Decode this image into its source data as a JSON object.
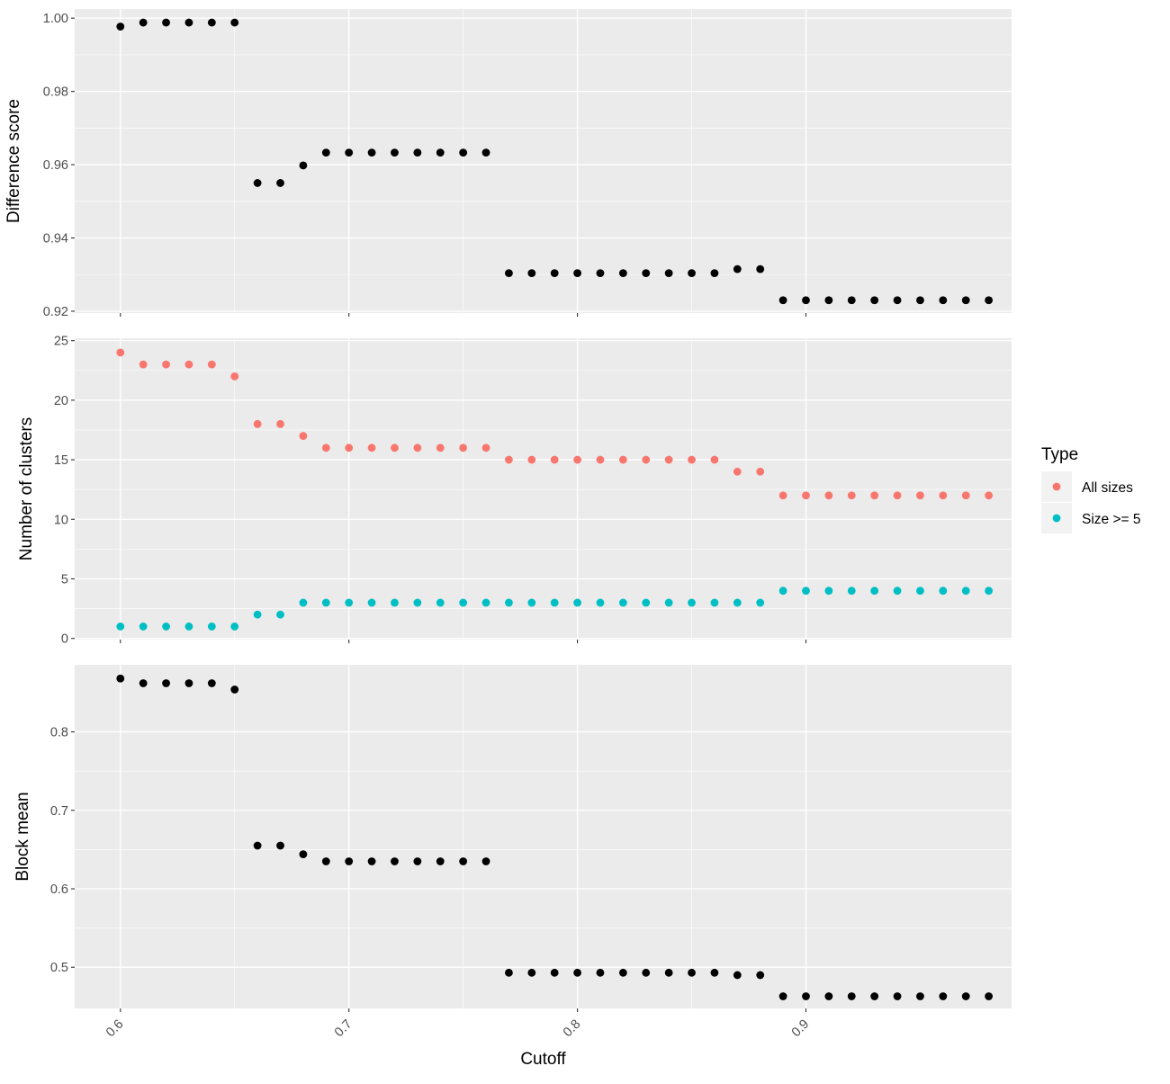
{
  "chart_data": [
    {
      "type": "scatter",
      "panel": "top",
      "xlabel": "",
      "ylabel": "Difference score",
      "xlim": [
        0.58,
        0.99
      ],
      "ylim": [
        0.9195,
        1.0025
      ],
      "yticks": [
        0.92,
        0.94,
        0.96,
        0.98,
        1.0
      ],
      "ytick_labels": [
        "0.92",
        "0.94",
        "0.96",
        "0.98",
        "1.00"
      ],
      "xticks": [
        0.6,
        0.7,
        0.8,
        0.9
      ],
      "grid": true,
      "series": [
        {
          "color": "#000000",
          "points": [
            [
              0.6,
              0.9977
            ],
            [
              0.61,
              0.9988
            ],
            [
              0.62,
              0.9988
            ],
            [
              0.63,
              0.9988
            ],
            [
              0.64,
              0.9988
            ],
            [
              0.65,
              0.9988
            ],
            [
              0.66,
              0.955
            ],
            [
              0.67,
              0.955
            ],
            [
              0.68,
              0.9598
            ],
            [
              0.69,
              0.9633
            ],
            [
              0.7,
              0.9633
            ],
            [
              0.71,
              0.9633
            ],
            [
              0.72,
              0.9633
            ],
            [
              0.73,
              0.9633
            ],
            [
              0.74,
              0.9633
            ],
            [
              0.75,
              0.9633
            ],
            [
              0.76,
              0.9633
            ],
            [
              0.77,
              0.9304
            ],
            [
              0.78,
              0.9304
            ],
            [
              0.79,
              0.9304
            ],
            [
              0.8,
              0.9304
            ],
            [
              0.81,
              0.9304
            ],
            [
              0.82,
              0.9304
            ],
            [
              0.83,
              0.9304
            ],
            [
              0.84,
              0.9304
            ],
            [
              0.85,
              0.9304
            ],
            [
              0.86,
              0.9304
            ],
            [
              0.87,
              0.9315
            ],
            [
              0.88,
              0.9315
            ],
            [
              0.89,
              0.923
            ],
            [
              0.9,
              0.923
            ],
            [
              0.91,
              0.923
            ],
            [
              0.92,
              0.923
            ],
            [
              0.93,
              0.923
            ],
            [
              0.94,
              0.923
            ],
            [
              0.95,
              0.923
            ],
            [
              0.96,
              0.923
            ],
            [
              0.97,
              0.923
            ],
            [
              0.98,
              0.923
            ]
          ]
        }
      ]
    },
    {
      "type": "scatter",
      "panel": "middle",
      "xlabel": "",
      "ylabel": "Number of clusters",
      "xlim": [
        0.58,
        0.99
      ],
      "ylim": [
        -0.1,
        25.2
      ],
      "yticks": [
        0,
        5,
        10,
        15,
        20,
        25
      ],
      "ytick_labels": [
        "0",
        "5",
        "10",
        "15",
        "20",
        "25"
      ],
      "xticks": [
        0.6,
        0.7,
        0.8,
        0.9
      ],
      "grid": true,
      "legend": {
        "title": "Type",
        "placement": "right",
        "entries": [
          {
            "label": "All sizes",
            "color": "#F8766D"
          },
          {
            "label": "Size >= 5",
            "color": "#00BFC4"
          }
        ]
      },
      "series": [
        {
          "name": "All sizes",
          "color": "#F8766D",
          "points": [
            [
              0.6,
              24
            ],
            [
              0.61,
              23
            ],
            [
              0.62,
              23
            ],
            [
              0.63,
              23
            ],
            [
              0.64,
              23
            ],
            [
              0.65,
              22
            ],
            [
              0.66,
              18
            ],
            [
              0.67,
              18
            ],
            [
              0.68,
              17
            ],
            [
              0.69,
              16
            ],
            [
              0.7,
              16
            ],
            [
              0.71,
              16
            ],
            [
              0.72,
              16
            ],
            [
              0.73,
              16
            ],
            [
              0.74,
              16
            ],
            [
              0.75,
              16
            ],
            [
              0.76,
              16
            ],
            [
              0.77,
              15
            ],
            [
              0.78,
              15
            ],
            [
              0.79,
              15
            ],
            [
              0.8,
              15
            ],
            [
              0.81,
              15
            ],
            [
              0.82,
              15
            ],
            [
              0.83,
              15
            ],
            [
              0.84,
              15
            ],
            [
              0.85,
              15
            ],
            [
              0.86,
              15
            ],
            [
              0.87,
              14
            ],
            [
              0.88,
              14
            ],
            [
              0.89,
              12
            ],
            [
              0.9,
              12
            ],
            [
              0.91,
              12
            ],
            [
              0.92,
              12
            ],
            [
              0.93,
              12
            ],
            [
              0.94,
              12
            ],
            [
              0.95,
              12
            ],
            [
              0.96,
              12
            ],
            [
              0.97,
              12
            ],
            [
              0.98,
              12
            ]
          ]
        },
        {
          "name": "Size >= 5",
          "color": "#00BFC4",
          "points": [
            [
              0.6,
              1
            ],
            [
              0.61,
              1
            ],
            [
              0.62,
              1
            ],
            [
              0.63,
              1
            ],
            [
              0.64,
              1
            ],
            [
              0.65,
              1
            ],
            [
              0.66,
              2
            ],
            [
              0.67,
              2
            ],
            [
              0.68,
              3
            ],
            [
              0.69,
              3
            ],
            [
              0.7,
              3
            ],
            [
              0.71,
              3
            ],
            [
              0.72,
              3
            ],
            [
              0.73,
              3
            ],
            [
              0.74,
              3
            ],
            [
              0.75,
              3
            ],
            [
              0.76,
              3
            ],
            [
              0.77,
              3
            ],
            [
              0.78,
              3
            ],
            [
              0.79,
              3
            ],
            [
              0.8,
              3
            ],
            [
              0.81,
              3
            ],
            [
              0.82,
              3
            ],
            [
              0.83,
              3
            ],
            [
              0.84,
              3
            ],
            [
              0.85,
              3
            ],
            [
              0.86,
              3
            ],
            [
              0.87,
              3
            ],
            [
              0.88,
              3
            ],
            [
              0.89,
              4
            ],
            [
              0.9,
              4
            ],
            [
              0.91,
              4
            ],
            [
              0.92,
              4
            ],
            [
              0.93,
              4
            ],
            [
              0.94,
              4
            ],
            [
              0.95,
              4
            ],
            [
              0.96,
              4
            ],
            [
              0.97,
              4
            ],
            [
              0.98,
              4
            ]
          ]
        }
      ]
    },
    {
      "type": "scatter",
      "panel": "bottom",
      "xlabel": "Cutoff",
      "ylabel": "Block mean",
      "xlim": [
        0.58,
        0.99
      ],
      "ylim": [
        0.4475,
        0.8855
      ],
      "yticks": [
        0.5,
        0.6,
        0.7,
        0.8
      ],
      "ytick_labels": [
        "0.5",
        "0.6",
        "0.7",
        "0.8"
      ],
      "xticks": [
        0.6,
        0.7,
        0.8,
        0.9
      ],
      "xtick_labels": [
        "0.6",
        "0.7",
        "0.8",
        "0.9"
      ],
      "grid": true,
      "series": [
        {
          "color": "#000000",
          "points": [
            [
              0.6,
              0.868
            ],
            [
              0.61,
              0.862
            ],
            [
              0.62,
              0.862
            ],
            [
              0.63,
              0.862
            ],
            [
              0.64,
              0.862
            ],
            [
              0.65,
              0.854
            ],
            [
              0.66,
              0.655
            ],
            [
              0.67,
              0.655
            ],
            [
              0.68,
              0.644
            ],
            [
              0.69,
              0.635
            ],
            [
              0.7,
              0.635
            ],
            [
              0.71,
              0.635
            ],
            [
              0.72,
              0.635
            ],
            [
              0.73,
              0.635
            ],
            [
              0.74,
              0.635
            ],
            [
              0.75,
              0.635
            ],
            [
              0.76,
              0.635
            ],
            [
              0.77,
              0.493
            ],
            [
              0.78,
              0.493
            ],
            [
              0.79,
              0.493
            ],
            [
              0.8,
              0.493
            ],
            [
              0.81,
              0.493
            ],
            [
              0.82,
              0.493
            ],
            [
              0.83,
              0.493
            ],
            [
              0.84,
              0.493
            ],
            [
              0.85,
              0.493
            ],
            [
              0.86,
              0.493
            ],
            [
              0.87,
              0.49
            ],
            [
              0.88,
              0.49
            ],
            [
              0.89,
              0.463
            ],
            [
              0.9,
              0.463
            ],
            [
              0.91,
              0.463
            ],
            [
              0.92,
              0.463
            ],
            [
              0.93,
              0.463
            ],
            [
              0.94,
              0.463
            ],
            [
              0.95,
              0.463
            ],
            [
              0.96,
              0.463
            ],
            [
              0.97,
              0.463
            ],
            [
              0.98,
              0.463
            ]
          ]
        }
      ]
    }
  ]
}
